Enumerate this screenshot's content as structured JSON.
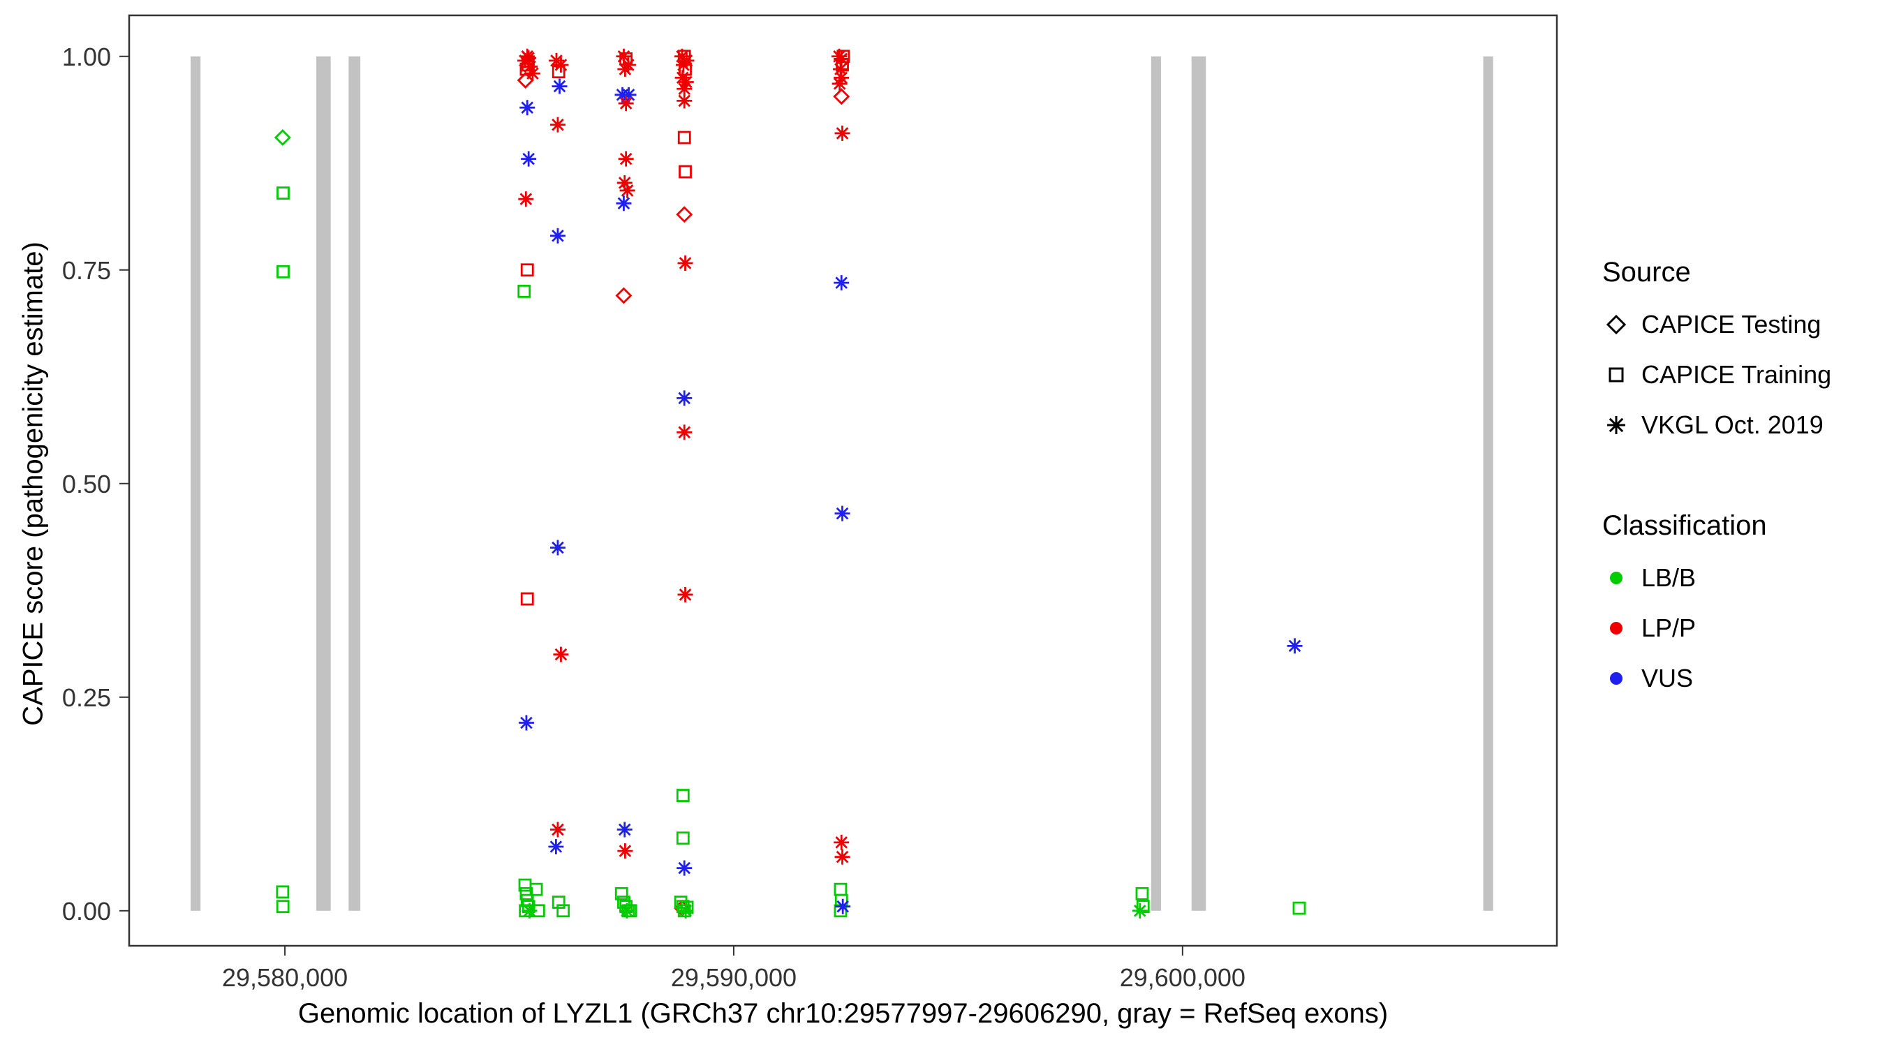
{
  "legend": {
    "source_title": "Source",
    "source_items": [
      "CAPICE Testing",
      "CAPICE Training",
      "VKGL Oct. 2019"
    ],
    "classification_title": "Classification",
    "classification_items": [
      "LB/B",
      "LP/P",
      "VUS"
    ]
  },
  "chart_data": {
    "type": "scatter",
    "title": "",
    "xlabel": "Genomic location of LYZL1 (GRCh37 chr10:29577997-29606290, gray = RefSeq exons)",
    "ylabel": "CAPICE score (pathogenicity estimate)",
    "axes": {
      "x": {
        "domain": [
          29576530,
          29608340
        ],
        "ticks": [
          {
            "value": 29580000,
            "label": "29,580,000"
          },
          {
            "value": 29590000,
            "label": "29,590,000"
          },
          {
            "value": 29600000,
            "label": "29,600,000"
          }
        ]
      },
      "y": {
        "domain": [
          -0.041,
          1.048
        ],
        "ticks": [
          {
            "value": 0.0,
            "label": "0.00"
          },
          {
            "value": 0.25,
            "label": "0.25"
          },
          {
            "value": 0.5,
            "label": "0.50"
          },
          {
            "value": 0.75,
            "label": "0.75"
          },
          {
            "value": 1.0,
            "label": "1.00"
          }
        ]
      }
    },
    "colors": {
      "LB/B": "#00CC00",
      "LP/P": "#EE0000",
      "VUS": "#2020EE",
      "exon": "#C2C2C2"
    },
    "symbols": {
      "CAPICE Testing": "open-diamond",
      "CAPICE Training": "open-square",
      "VKGL Oct. 2019": "asterisk"
    },
    "exon_y_extent": [
      0,
      1
    ],
    "exons": [
      [
        29577900,
        29578120
      ],
      [
        29580700,
        29581020
      ],
      [
        29581420,
        29581680
      ],
      [
        29599300,
        29599520
      ],
      [
        29600200,
        29600520
      ],
      [
        29606700,
        29606920
      ]
    ],
    "point_format": [
      "genomic_position",
      "capice_score",
      "source",
      "classification"
    ],
    "points": [
      [
        29579950,
        0.905,
        "CAPICE Testing",
        "LB/B"
      ],
      [
        29579960,
        0.84,
        "CAPICE Training",
        "LB/B"
      ],
      [
        29579960,
        0.748,
        "CAPICE Training",
        "LB/B"
      ],
      [
        29579950,
        0.022,
        "CAPICE Training",
        "LB/B"
      ],
      [
        29579955,
        0.005,
        "CAPICE Training",
        "LB/B"
      ],
      [
        29585350,
        0.995,
        "VKGL Oct. 2019",
        "LP/P"
      ],
      [
        29585400,
        1.0,
        "VKGL Oct. 2019",
        "LP/P"
      ],
      [
        29585430,
        0.998,
        "VKGL Oct. 2019",
        "LP/P"
      ],
      [
        29585420,
        0.99,
        "CAPICE Training",
        "LP/P"
      ],
      [
        29585380,
        0.985,
        "CAPICE Training",
        "LP/P"
      ],
      [
        29585360,
        0.972,
        "CAPICE Testing",
        "LP/P"
      ],
      [
        29585460,
        0.988,
        "VKGL Oct. 2019",
        "LP/P"
      ],
      [
        29585520,
        0.98,
        "VKGL Oct. 2019",
        "LP/P"
      ],
      [
        29585400,
        0.94,
        "VKGL Oct. 2019",
        "VUS"
      ],
      [
        29585430,
        0.88,
        "VKGL Oct. 2019",
        "VUS"
      ],
      [
        29585370,
        0.833,
        "VKGL Oct. 2019",
        "LP/P"
      ],
      [
        29585400,
        0.75,
        "CAPICE Training",
        "LP/P"
      ],
      [
        29585330,
        0.725,
        "CAPICE Training",
        "LB/B"
      ],
      [
        29585400,
        0.365,
        "CAPICE Training",
        "LP/P"
      ],
      [
        29585380,
        0.22,
        "VKGL Oct. 2019",
        "VUS"
      ],
      [
        29585350,
        0.03,
        "CAPICE Training",
        "LB/B"
      ],
      [
        29585380,
        0.02,
        "CAPICE Training",
        "LB/B"
      ],
      [
        29585400,
        0.012,
        "CAPICE Training",
        "LB/B"
      ],
      [
        29585430,
        0.005,
        "CAPICE Training",
        "LB/B"
      ],
      [
        29585360,
        0.0,
        "CAPICE Training",
        "LB/B"
      ],
      [
        29585450,
        0.0,
        "VKGL Oct. 2019",
        "LB/B"
      ],
      [
        29585600,
        0.025,
        "CAPICE Training",
        "LB/B"
      ],
      [
        29585650,
        0.0,
        "CAPICE Training",
        "LB/B"
      ],
      [
        29586050,
        0.995,
        "VKGL Oct. 2019",
        "LP/P"
      ],
      [
        29586150,
        0.99,
        "VKGL Oct. 2019",
        "LP/P"
      ],
      [
        29586100,
        0.982,
        "CAPICE Training",
        "LP/P"
      ],
      [
        29586120,
        0.965,
        "VKGL Oct. 2019",
        "VUS"
      ],
      [
        29586080,
        0.92,
        "VKGL Oct. 2019",
        "LP/P"
      ],
      [
        29586080,
        0.79,
        "VKGL Oct. 2019",
        "VUS"
      ],
      [
        29586080,
        0.425,
        "VKGL Oct. 2019",
        "VUS"
      ],
      [
        29586150,
        0.3,
        "VKGL Oct. 2019",
        "LP/P"
      ],
      [
        29586080,
        0.095,
        "VKGL Oct. 2019",
        "LP/P"
      ],
      [
        29586040,
        0.075,
        "VKGL Oct. 2019",
        "VUS"
      ],
      [
        29586100,
        0.01,
        "CAPICE Training",
        "LB/B"
      ],
      [
        29586200,
        0.0,
        "CAPICE Training",
        "LB/B"
      ],
      [
        29587550,
        1.0,
        "VKGL Oct. 2019",
        "LP/P"
      ],
      [
        29587600,
        0.997,
        "CAPICE Training",
        "LP/P"
      ],
      [
        29587650,
        0.99,
        "VKGL Oct. 2019",
        "LP/P"
      ],
      [
        29587580,
        0.985,
        "VKGL Oct. 2019",
        "LP/P"
      ],
      [
        29587520,
        0.955,
        "VKGL Oct. 2019",
        "VUS"
      ],
      [
        29587660,
        0.955,
        "VKGL Oct. 2019",
        "VUS"
      ],
      [
        29587600,
        0.945,
        "VKGL Oct. 2019",
        "LP/P"
      ],
      [
        29587600,
        0.88,
        "VKGL Oct. 2019",
        "LP/P"
      ],
      [
        29587570,
        0.852,
        "VKGL Oct. 2019",
        "LP/P"
      ],
      [
        29587630,
        0.843,
        "VKGL Oct. 2019",
        "LP/P"
      ],
      [
        29587550,
        0.828,
        "VKGL Oct. 2019",
        "VUS"
      ],
      [
        29587550,
        0.72,
        "CAPICE Testing",
        "LP/P"
      ],
      [
        29587570,
        0.095,
        "VKGL Oct. 2019",
        "VUS"
      ],
      [
        29587580,
        0.07,
        "VKGL Oct. 2019",
        "LP/P"
      ],
      [
        29587500,
        0.02,
        "CAPICE Training",
        "LB/B"
      ],
      [
        29587550,
        0.01,
        "CAPICE Training",
        "LB/B"
      ],
      [
        29587600,
        0.005,
        "CAPICE Training",
        "LB/B"
      ],
      [
        29587650,
        0.0,
        "CAPICE Training",
        "LB/B"
      ],
      [
        29587620,
        0.0,
        "VKGL Oct. 2019",
        "LB/B"
      ],
      [
        29587700,
        0.0,
        "CAPICE Training",
        "LB/B"
      ],
      [
        29588850,
        1.0,
        "VKGL Oct. 2019",
        "LP/P"
      ],
      [
        29588900,
        1.0,
        "CAPICE Training",
        "LP/P"
      ],
      [
        29588950,
        0.995,
        "VKGL Oct. 2019",
        "LP/P"
      ],
      [
        29588880,
        0.99,
        "VKGL Oct. 2019",
        "LP/P"
      ],
      [
        29588920,
        0.985,
        "CAPICE Training",
        "LP/P"
      ],
      [
        29588860,
        0.975,
        "VKGL Oct. 2019",
        "LP/P"
      ],
      [
        29588940,
        0.97,
        "VKGL Oct. 2019",
        "LP/P"
      ],
      [
        29588900,
        0.962,
        "VKGL Oct. 2019",
        "LP/P"
      ],
      [
        29588900,
        0.948,
        "VKGL Oct. 2019",
        "LP/P"
      ],
      [
        29588900,
        0.905,
        "CAPICE Training",
        "LP/P"
      ],
      [
        29588920,
        0.865,
        "CAPICE Training",
        "LP/P"
      ],
      [
        29588900,
        0.815,
        "CAPICE Testing",
        "LP/P"
      ],
      [
        29588920,
        0.758,
        "VKGL Oct. 2019",
        "LP/P"
      ],
      [
        29588900,
        0.6,
        "VKGL Oct. 2019",
        "VUS"
      ],
      [
        29588900,
        0.56,
        "VKGL Oct. 2019",
        "LP/P"
      ],
      [
        29588920,
        0.37,
        "VKGL Oct. 2019",
        "LP/P"
      ],
      [
        29588870,
        0.135,
        "CAPICE Training",
        "LB/B"
      ],
      [
        29588870,
        0.085,
        "CAPICE Training",
        "LB/B"
      ],
      [
        29588900,
        0.05,
        "VKGL Oct. 2019",
        "VUS"
      ],
      [
        29588850,
        0.003,
        "CAPICE Testing",
        "LP/P"
      ],
      [
        29588820,
        0.01,
        "CAPICE Training",
        "LB/B"
      ],
      [
        29588870,
        0.005,
        "CAPICE Training",
        "LB/B"
      ],
      [
        29588900,
        0.0,
        "CAPICE Training",
        "LB/B"
      ],
      [
        29588930,
        0.0,
        "VKGL Oct. 2019",
        "LB/B"
      ],
      [
        29588960,
        0.004,
        "CAPICE Training",
        "LB/B"
      ],
      [
        29592350,
        1.0,
        "VKGL Oct. 2019",
        "LP/P"
      ],
      [
        29592400,
        0.997,
        "VKGL Oct. 2019",
        "LP/P"
      ],
      [
        29592440,
        1.0,
        "CAPICE Training",
        "LP/P"
      ],
      [
        29592420,
        0.99,
        "CAPICE Training",
        "LP/P"
      ],
      [
        29592380,
        0.985,
        "VKGL Oct. 2019",
        "LP/P"
      ],
      [
        29592400,
        0.975,
        "VKGL Oct. 2019",
        "LP/P"
      ],
      [
        29592360,
        0.968,
        "VKGL Oct. 2019",
        "LP/P"
      ],
      [
        29592400,
        0.953,
        "CAPICE Testing",
        "LP/P"
      ],
      [
        29592420,
        0.91,
        "VKGL Oct. 2019",
        "LP/P"
      ],
      [
        29592400,
        0.735,
        "VKGL Oct. 2019",
        "VUS"
      ],
      [
        29592420,
        0.465,
        "VKGL Oct. 2019",
        "VUS"
      ],
      [
        29592400,
        0.08,
        "VKGL Oct. 2019",
        "LP/P"
      ],
      [
        29592420,
        0.063,
        "VKGL Oct. 2019",
        "LP/P"
      ],
      [
        29592380,
        0.025,
        "CAPICE Training",
        "LB/B"
      ],
      [
        29592400,
        0.012,
        "CAPICE Training",
        "LB/B"
      ],
      [
        29592380,
        0.0,
        "CAPICE Training",
        "LB/B"
      ],
      [
        29592430,
        0.005,
        "VKGL Oct. 2019",
        "VUS"
      ],
      [
        29599100,
        0.02,
        "CAPICE Training",
        "LB/B"
      ],
      [
        29599120,
        0.005,
        "CAPICE Training",
        "LB/B"
      ],
      [
        29599050,
        0.0,
        "VKGL Oct. 2019",
        "LB/B"
      ],
      [
        29602500,
        0.31,
        "VKGL Oct. 2019",
        "VUS"
      ],
      [
        29602600,
        0.003,
        "CAPICE Training",
        "LB/B"
      ]
    ]
  }
}
